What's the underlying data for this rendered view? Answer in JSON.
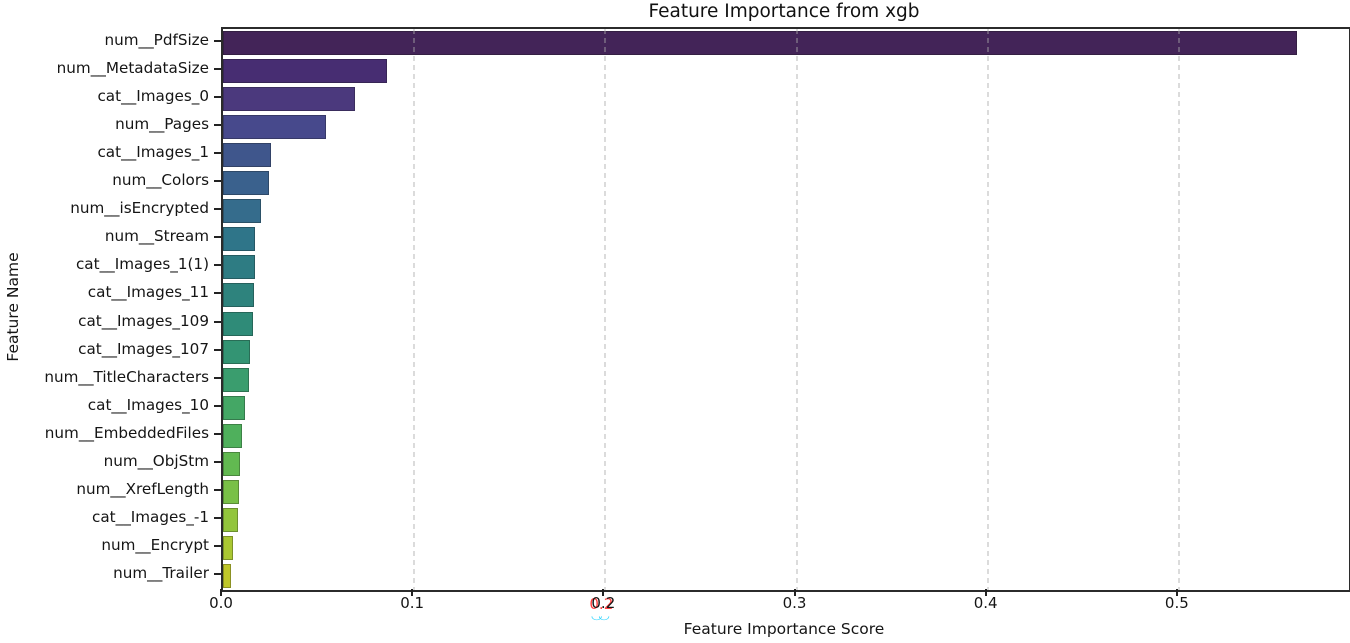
{
  "chart_data": {
    "type": "bar",
    "orientation": "horizontal",
    "title": "Feature Importance from xgb",
    "xlabel": "Feature Importance Score",
    "ylabel": "Feature Name",
    "palette": "viridis",
    "grid": "vertical-dashed-gridlines",
    "legend": "none",
    "xlim": [
      0.0,
      0.589
    ],
    "xtick_labels": [
      "0.0",
      "0.1",
      "0.2",
      "0.3",
      "0.4",
      "0.5"
    ],
    "xtick_values": [
      0.0,
      0.1,
      0.2,
      0.3,
      0.4,
      0.5
    ],
    "categories": [
      "num__PdfSize",
      "num__MetadataSize",
      "cat__Images_0",
      "num__Pages",
      "cat__Images_1",
      "num__Colors",
      "num__isEncrypted",
      "num__Stream",
      "cat__Images_1(1)",
      "cat__Images_11",
      "cat__Images_109",
      "cat__Images_107",
      "num__TitleCharacters",
      "cat__Images_10",
      "num__EmbeddedFiles",
      "num__ObjStm",
      "num__XrefLength",
      "cat__Images_-1",
      "num__Encrypt",
      "num__Trailer"
    ],
    "values": [
      0.562,
      0.086,
      0.069,
      0.054,
      0.025,
      0.024,
      0.02,
      0.017,
      0.0165,
      0.016,
      0.0155,
      0.014,
      0.0135,
      0.0115,
      0.01,
      0.009,
      0.0085,
      0.008,
      0.005,
      0.004
    ],
    "bar_colors": [
      "#432458",
      "#472d72",
      "#4b397d",
      "#47498c",
      "#3f568c",
      "#3a618d",
      "#356c8c",
      "#2f7589",
      "#2e7c83",
      "#2e837d",
      "#2f8b78",
      "#339473",
      "#3a9d6e",
      "#44a765",
      "#4fb05c",
      "#62b951",
      "#79c047",
      "#92c53c",
      "#aac732",
      "#bfc72a"
    ],
    "artifacts": {
      "red_tinted_xtick": "0.2",
      "cyan_mark_glyph": "◡◡"
    }
  }
}
